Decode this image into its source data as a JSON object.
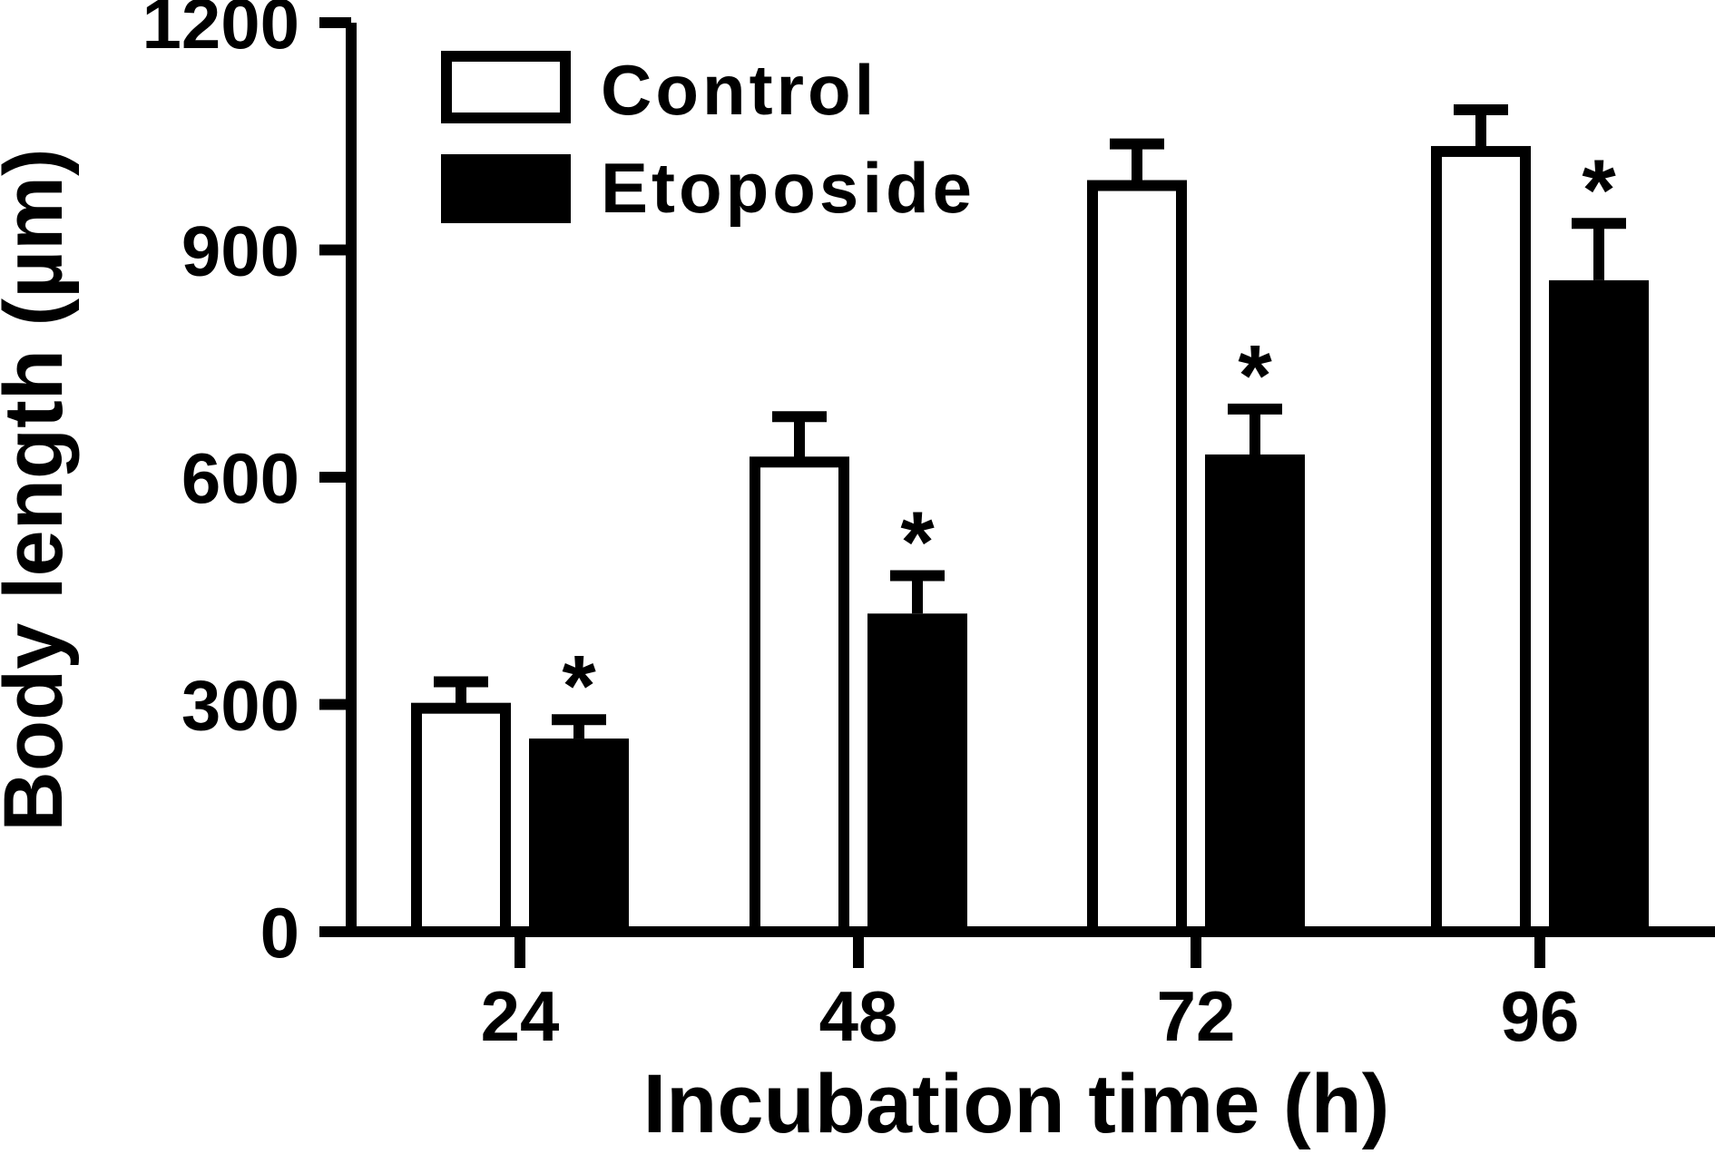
{
  "chart_data": {
    "type": "bar",
    "title": "",
    "xlabel": "Incubation time (h)",
    "ylabel": "Body length (µm)",
    "categories": [
      "24",
      "48",
      "72",
      "96"
    ],
    "ylim": [
      0,
      1200
    ],
    "yticks": [
      "0",
      "300",
      "600",
      "900",
      "1200"
    ],
    "ytick_values": [
      0,
      300,
      600,
      900,
      1200
    ],
    "legend_position": "top-left",
    "grid": false,
    "series": [
      {
        "name": "Control",
        "fill": "#ffffff",
        "values": [
          295,
          620,
          985,
          1030
        ],
        "errors": [
          35,
          60,
          55,
          55
        ],
        "significance": [
          "",
          "",
          "",
          ""
        ]
      },
      {
        "name": "Etoposide",
        "fill": "#000000",
        "values": [
          255,
          420,
          630,
          860
        ],
        "errors": [
          25,
          50,
          60,
          75
        ],
        "significance": [
          "*",
          "*",
          "*",
          "*"
        ]
      }
    ]
  }
}
